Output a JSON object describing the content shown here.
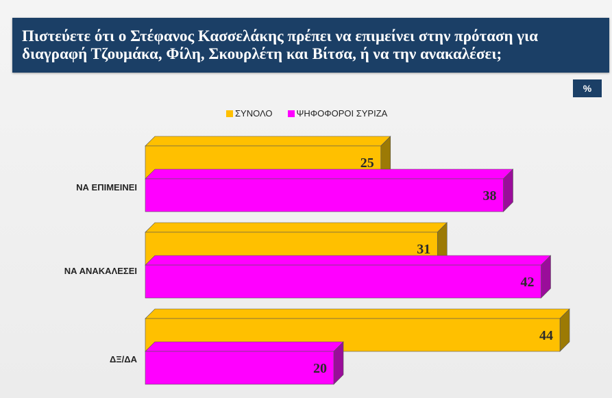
{
  "title": "Πιστεύετε ότι ο Στέφανος Κασσελάκης πρέπει να επιμείνει στην πρόταση για διαγραφή Τζουμάκα, Φίλη, Σκουρλέτη και Βίτσα, ή να την ανακαλέσει;",
  "badge": "%",
  "colors": {
    "header": "#1b3f66"
  },
  "chart_data": {
    "type": "bar",
    "orientation": "horizontal",
    "categories": [
      "ΝΑ ΕΠΙΜΕΙΝΕΙ",
      "ΝΑ ΑΝΑΚΑΛΕΣΕΙ",
      "ΔΞ/ΔΑ"
    ],
    "series": [
      {
        "name": "ΣΥΝΟΛΟ",
        "color": "#ffc000",
        "side_color": "#9c7a05",
        "values": [
          25,
          31,
          44
        ]
      },
      {
        "name": "ΨΗΦΟΦΟΡΟΙ ΣΥΡΙΖΑ",
        "color": "#ff00ff",
        "side_color": "#9a0d9a",
        "values": [
          38,
          42,
          20
        ]
      }
    ],
    "xlim": [
      0,
      45
    ],
    "legend_position": "top",
    "grid": false
  }
}
